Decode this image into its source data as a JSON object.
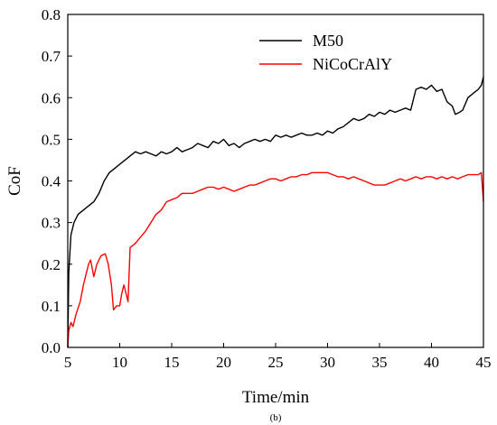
{
  "chart_data": {
    "type": "line",
    "xlabel": "Time/min",
    "ylabel": "CoF",
    "caption": "(b)",
    "xlim": [
      5,
      45
    ],
    "ylim": [
      0,
      0.8
    ],
    "xticks": [
      "5",
      "10",
      "15",
      "20",
      "25",
      "30",
      "35",
      "40",
      "45"
    ],
    "yticks": [
      "0.0",
      "0.1",
      "0.2",
      "0.3",
      "0.4",
      "0.5",
      "0.6",
      "0.7",
      "0.8"
    ],
    "legend_position": "top-right",
    "series": [
      {
        "name": "M50",
        "color": "#000000",
        "points": [
          [
            5.0,
            0.0
          ],
          [
            5.1,
            0.18
          ],
          [
            5.3,
            0.27
          ],
          [
            5.6,
            0.3
          ],
          [
            6.0,
            0.32
          ],
          [
            6.5,
            0.33
          ],
          [
            7.0,
            0.34
          ],
          [
            7.5,
            0.35
          ],
          [
            8.0,
            0.37
          ],
          [
            8.5,
            0.4
          ],
          [
            9.0,
            0.42
          ],
          [
            9.5,
            0.43
          ],
          [
            10.0,
            0.44
          ],
          [
            10.5,
            0.45
          ],
          [
            11.0,
            0.46
          ],
          [
            11.5,
            0.47
          ],
          [
            12.0,
            0.465
          ],
          [
            12.5,
            0.47
          ],
          [
            13.0,
            0.465
          ],
          [
            13.5,
            0.46
          ],
          [
            14.0,
            0.47
          ],
          [
            14.5,
            0.465
          ],
          [
            15.0,
            0.47
          ],
          [
            15.5,
            0.48
          ],
          [
            16.0,
            0.47
          ],
          [
            16.5,
            0.475
          ],
          [
            17.0,
            0.48
          ],
          [
            17.5,
            0.49
          ],
          [
            18.0,
            0.485
          ],
          [
            18.5,
            0.48
          ],
          [
            19.0,
            0.495
          ],
          [
            19.5,
            0.49
          ],
          [
            20.0,
            0.5
          ],
          [
            20.5,
            0.485
          ],
          [
            21.0,
            0.49
          ],
          [
            21.5,
            0.48
          ],
          [
            22.0,
            0.49
          ],
          [
            22.5,
            0.495
          ],
          [
            23.0,
            0.5
          ],
          [
            23.5,
            0.495
          ],
          [
            24.0,
            0.5
          ],
          [
            24.5,
            0.495
          ],
          [
            25.0,
            0.51
          ],
          [
            25.5,
            0.505
          ],
          [
            26.0,
            0.51
          ],
          [
            26.5,
            0.505
          ],
          [
            27.0,
            0.51
          ],
          [
            27.5,
            0.515
          ],
          [
            28.0,
            0.51
          ],
          [
            28.5,
            0.51
          ],
          [
            29.0,
            0.515
          ],
          [
            29.5,
            0.51
          ],
          [
            30.0,
            0.52
          ],
          [
            30.5,
            0.515
          ],
          [
            31.0,
            0.525
          ],
          [
            31.5,
            0.53
          ],
          [
            32.0,
            0.54
          ],
          [
            32.5,
            0.55
          ],
          [
            33.0,
            0.545
          ],
          [
            33.5,
            0.55
          ],
          [
            34.0,
            0.56
          ],
          [
            34.5,
            0.555
          ],
          [
            35.0,
            0.565
          ],
          [
            35.5,
            0.56
          ],
          [
            36.0,
            0.57
          ],
          [
            36.5,
            0.565
          ],
          [
            37.0,
            0.57
          ],
          [
            37.5,
            0.575
          ],
          [
            38.0,
            0.57
          ],
          [
            38.5,
            0.62
          ],
          [
            39.0,
            0.625
          ],
          [
            39.5,
            0.62
          ],
          [
            40.0,
            0.63
          ],
          [
            40.5,
            0.615
          ],
          [
            41.0,
            0.62
          ],
          [
            41.5,
            0.59
          ],
          [
            42.0,
            0.58
          ],
          [
            42.3,
            0.56
          ],
          [
            42.7,
            0.565
          ],
          [
            43.0,
            0.57
          ],
          [
            43.5,
            0.6
          ],
          [
            44.0,
            0.61
          ],
          [
            44.5,
            0.62
          ],
          [
            44.8,
            0.63
          ],
          [
            45.0,
            0.65
          ]
        ]
      },
      {
        "name": "NiCoCrAlY",
        "color": "#ff0000",
        "points": [
          [
            5.0,
            0.0
          ],
          [
            5.1,
            0.04
          ],
          [
            5.3,
            0.06
          ],
          [
            5.5,
            0.05
          ],
          [
            5.8,
            0.08
          ],
          [
            6.2,
            0.11
          ],
          [
            6.5,
            0.15
          ],
          [
            7.0,
            0.2
          ],
          [
            7.2,
            0.21
          ],
          [
            7.5,
            0.17
          ],
          [
            7.8,
            0.2
          ],
          [
            8.2,
            0.22
          ],
          [
            8.6,
            0.225
          ],
          [
            8.9,
            0.2
          ],
          [
            9.2,
            0.15
          ],
          [
            9.4,
            0.09
          ],
          [
            9.7,
            0.1
          ],
          [
            10.0,
            0.1
          ],
          [
            10.2,
            0.13
          ],
          [
            10.4,
            0.15
          ],
          [
            10.6,
            0.13
          ],
          [
            10.8,
            0.11
          ],
          [
            11.0,
            0.24
          ],
          [
            11.5,
            0.25
          ],
          [
            12.0,
            0.265
          ],
          [
            12.5,
            0.28
          ],
          [
            13.0,
            0.3
          ],
          [
            13.5,
            0.32
          ],
          [
            14.0,
            0.33
          ],
          [
            14.5,
            0.35
          ],
          [
            15.0,
            0.355
          ],
          [
            15.5,
            0.36
          ],
          [
            16.0,
            0.37
          ],
          [
            16.5,
            0.37
          ],
          [
            17.0,
            0.37
          ],
          [
            17.5,
            0.375
          ],
          [
            18.0,
            0.38
          ],
          [
            18.5,
            0.385
          ],
          [
            19.0,
            0.385
          ],
          [
            19.5,
            0.38
          ],
          [
            20.0,
            0.385
          ],
          [
            20.5,
            0.38
          ],
          [
            21.0,
            0.375
          ],
          [
            21.5,
            0.38
          ],
          [
            22.0,
            0.385
          ],
          [
            22.5,
            0.39
          ],
          [
            23.0,
            0.39
          ],
          [
            23.5,
            0.395
          ],
          [
            24.0,
            0.4
          ],
          [
            24.5,
            0.405
          ],
          [
            25.0,
            0.405
          ],
          [
            25.5,
            0.4
          ],
          [
            26.0,
            0.405
          ],
          [
            26.5,
            0.41
          ],
          [
            27.0,
            0.41
          ],
          [
            27.5,
            0.415
          ],
          [
            28.0,
            0.415
          ],
          [
            28.5,
            0.42
          ],
          [
            29.0,
            0.42
          ],
          [
            29.5,
            0.42
          ],
          [
            30.0,
            0.42
          ],
          [
            30.5,
            0.415
          ],
          [
            31.0,
            0.41
          ],
          [
            31.5,
            0.41
          ],
          [
            32.0,
            0.405
          ],
          [
            32.5,
            0.41
          ],
          [
            33.0,
            0.405
          ],
          [
            33.5,
            0.4
          ],
          [
            34.0,
            0.395
          ],
          [
            34.5,
            0.39
          ],
          [
            35.0,
            0.39
          ],
          [
            35.5,
            0.39
          ],
          [
            36.0,
            0.395
          ],
          [
            36.5,
            0.4
          ],
          [
            37.0,
            0.405
          ],
          [
            37.5,
            0.4
          ],
          [
            38.0,
            0.405
          ],
          [
            38.5,
            0.41
          ],
          [
            39.0,
            0.405
          ],
          [
            39.5,
            0.41
          ],
          [
            40.0,
            0.41
          ],
          [
            40.5,
            0.405
          ],
          [
            41.0,
            0.41
          ],
          [
            41.5,
            0.405
          ],
          [
            42.0,
            0.41
          ],
          [
            42.5,
            0.405
          ],
          [
            43.0,
            0.41
          ],
          [
            43.5,
            0.415
          ],
          [
            44.0,
            0.415
          ],
          [
            44.5,
            0.415
          ],
          [
            44.8,
            0.42
          ],
          [
            45.0,
            0.35
          ]
        ]
      }
    ]
  }
}
